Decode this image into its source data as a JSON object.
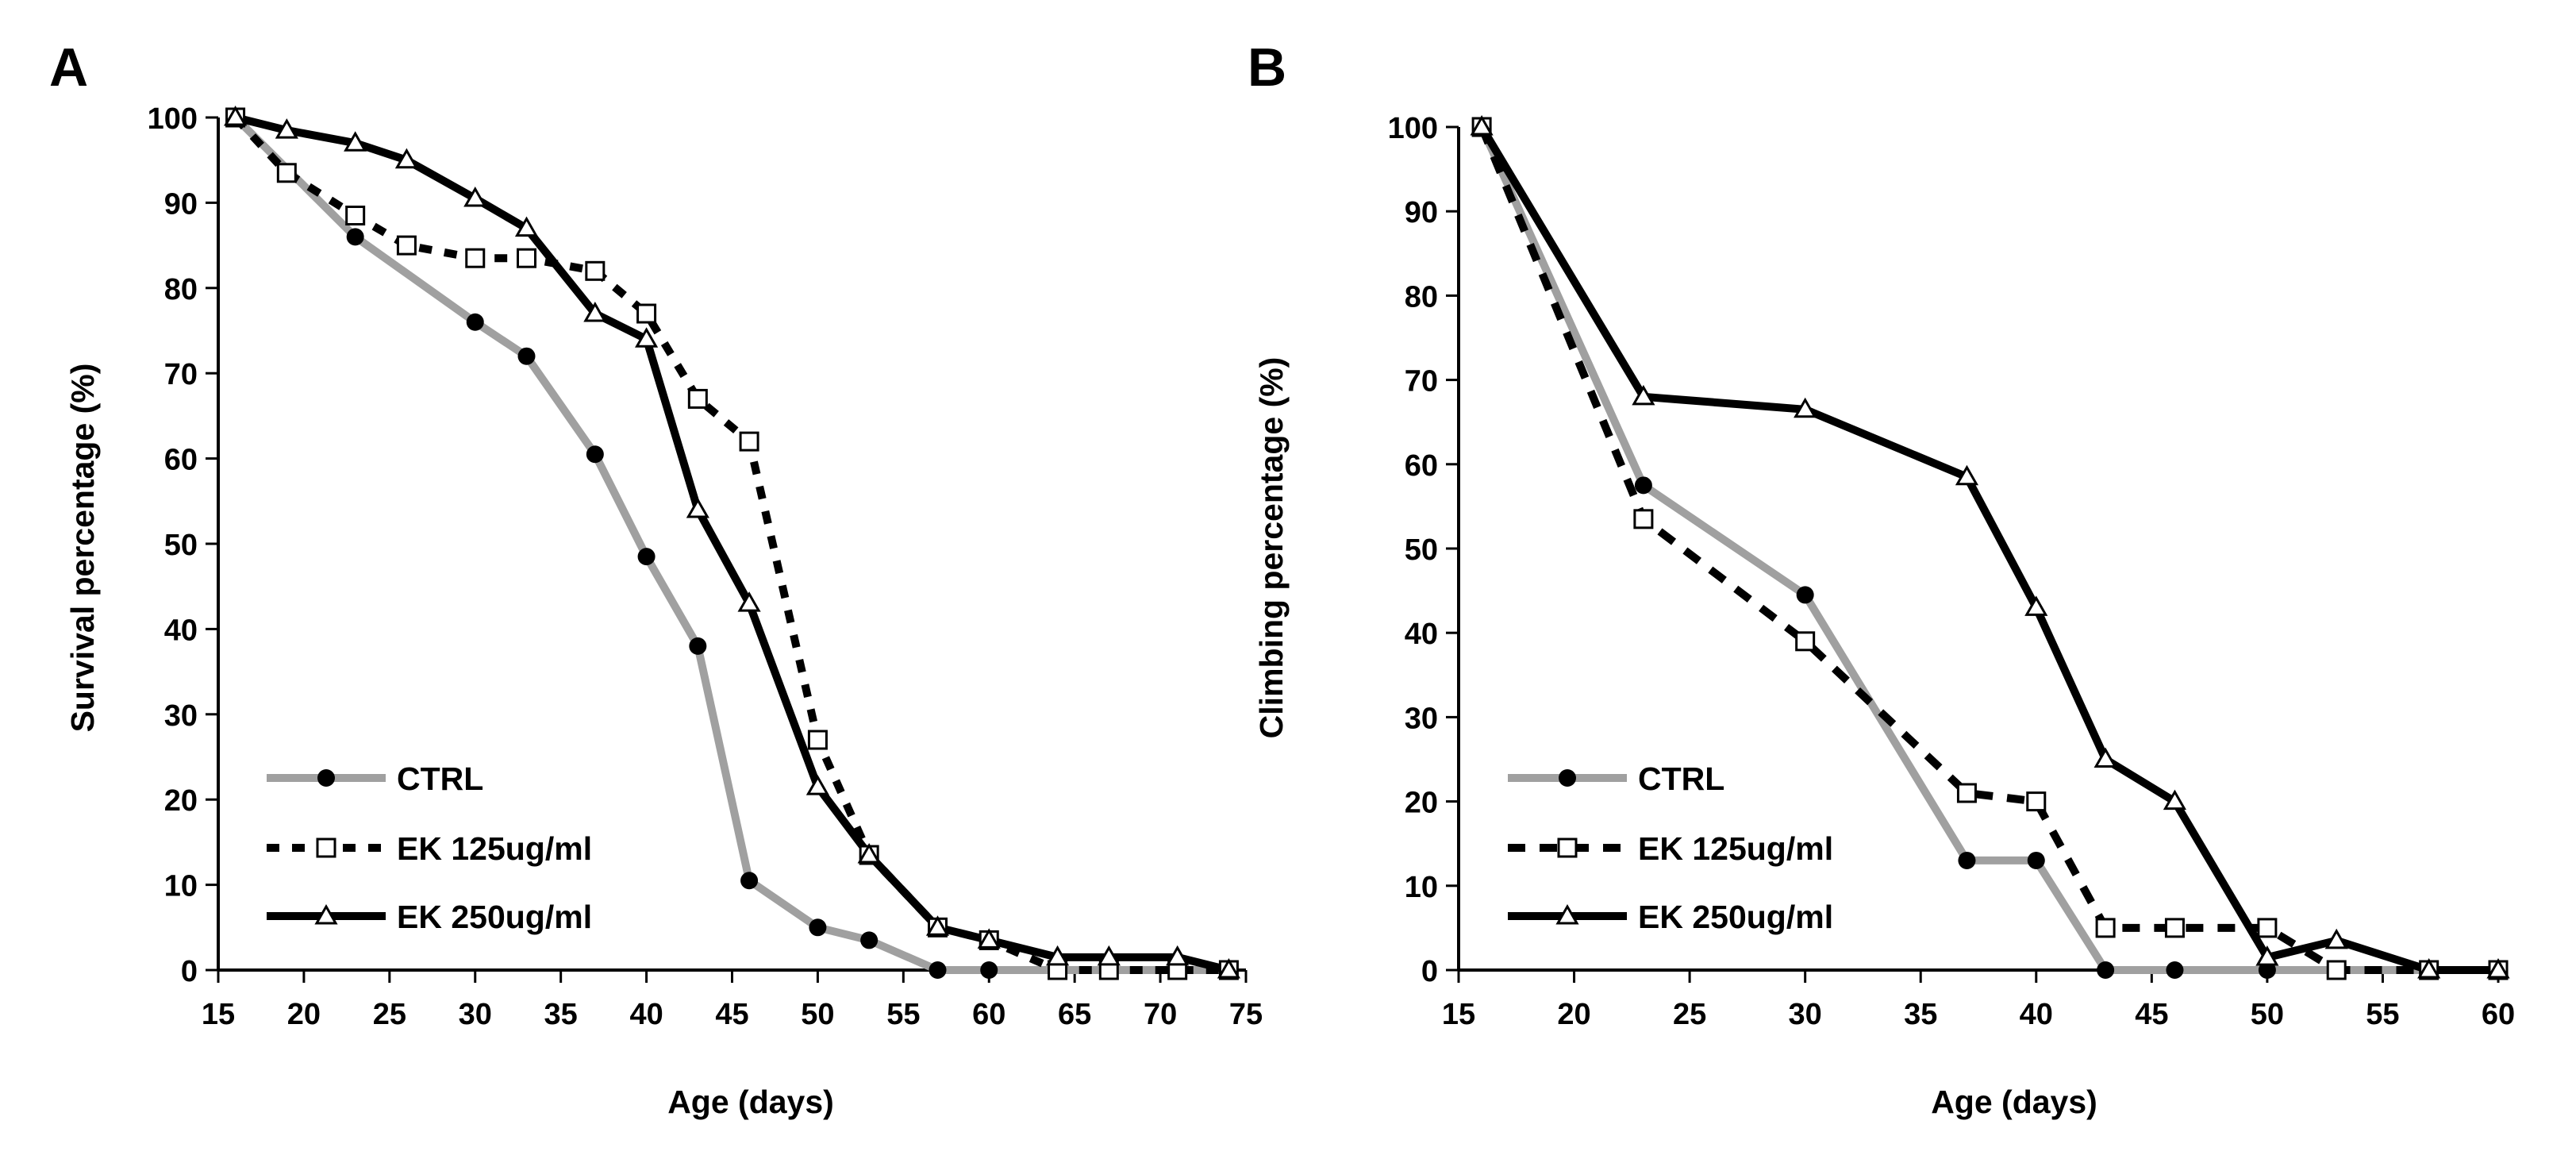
{
  "figure": {
    "panels": [
      {
        "panel_label": "A",
        "chart_data": {
          "type": "line",
          "xlabel": "Age (days)",
          "ylabel": "Survival percentage (%)",
          "xlim": [
            15,
            75
          ],
          "ylim": [
            0,
            100
          ],
          "xticks": [
            15,
            20,
            25,
            30,
            35,
            40,
            45,
            50,
            55,
            60,
            65,
            70,
            75
          ],
          "yticks": [
            0,
            10,
            20,
            30,
            40,
            50,
            60,
            70,
            80,
            90,
            100
          ],
          "grid": false,
          "legend_position": "bottom-left",
          "series": [
            {
              "name": "CTRL",
              "color": "#a0a0a0",
              "line_style": "solid",
              "marker": "filled-circle",
              "x": [
                16,
                23,
                30,
                33,
                37,
                40,
                43,
                46,
                50,
                53,
                57,
                60,
                64,
                67,
                71,
                74
              ],
              "y": [
                100,
                86,
                76,
                72,
                60.5,
                48.5,
                38,
                10.5,
                5,
                3.5,
                0,
                0,
                0,
                0,
                0,
                0
              ]
            },
            {
              "name": "EK 125ug/ml",
              "color": "#000000",
              "line_style": "dotted",
              "marker": "open-square",
              "x": [
                16,
                19,
                23,
                26,
                30,
                33,
                37,
                40,
                43,
                46,
                50,
                53,
                57,
                60,
                64,
                67,
                71,
                74
              ],
              "y": [
                100,
                93.5,
                88.5,
                85,
                83.5,
                83.5,
                82,
                77,
                67,
                62,
                27,
                13.5,
                5,
                3.5,
                0,
                0,
                0,
                0
              ]
            },
            {
              "name": "EK 250ug/ml",
              "color": "#000000",
              "line_style": "solid",
              "marker": "open-triangle",
              "x": [
                16,
                19,
                23,
                26,
                30,
                33,
                37,
                40,
                43,
                46,
                50,
                53,
                57,
                60,
                64,
                67,
                71,
                74
              ],
              "y": [
                100,
                98.5,
                97,
                95,
                90.5,
                87,
                77,
                74,
                54,
                43,
                21.5,
                13.5,
                5,
                3.5,
                1.5,
                1.5,
                1.5,
                0
              ]
            }
          ]
        }
      },
      {
        "panel_label": "B",
        "chart_data": {
          "type": "line",
          "xlabel": "Age (days)",
          "ylabel": "Climbing percentage (%)",
          "xlim": [
            15,
            60
          ],
          "ylim": [
            0,
            100
          ],
          "xticks": [
            15,
            20,
            25,
            30,
            35,
            40,
            45,
            50,
            55,
            60
          ],
          "yticks": [
            0,
            10,
            20,
            30,
            40,
            50,
            60,
            70,
            80,
            90,
            100
          ],
          "grid": false,
          "legend_position": "bottom-left",
          "series": [
            {
              "name": "CTRL",
              "color": "#a0a0a0",
              "line_style": "solid",
              "marker": "filled-circle",
              "x": [
                16,
                23,
                30,
                37,
                40,
                43,
                46,
                50,
                53,
                57,
                60
              ],
              "y": [
                100,
                57.5,
                44.5,
                13,
                13,
                0,
                0,
                0,
                0,
                0,
                0
              ]
            },
            {
              "name": "EK 125ug/ml",
              "color": "#000000",
              "line_style": "dashed",
              "marker": "open-square",
              "x": [
                16,
                23,
                30,
                37,
                40,
                43,
                46,
                50,
                53,
                57,
                60
              ],
              "y": [
                100,
                53.5,
                39,
                21,
                20,
                5,
                5,
                5,
                0,
                0,
                0
              ]
            },
            {
              "name": "EK 250ug/ml",
              "color": "#000000",
              "line_style": "solid",
              "marker": "open-triangle",
              "x": [
                16,
                23,
                30,
                37,
                40,
                43,
                46,
                50,
                53,
                57,
                60
              ],
              "y": [
                100,
                68,
                66.5,
                58.5,
                43,
                25,
                20,
                1.5,
                3.5,
                0,
                0
              ]
            }
          ]
        }
      }
    ]
  }
}
